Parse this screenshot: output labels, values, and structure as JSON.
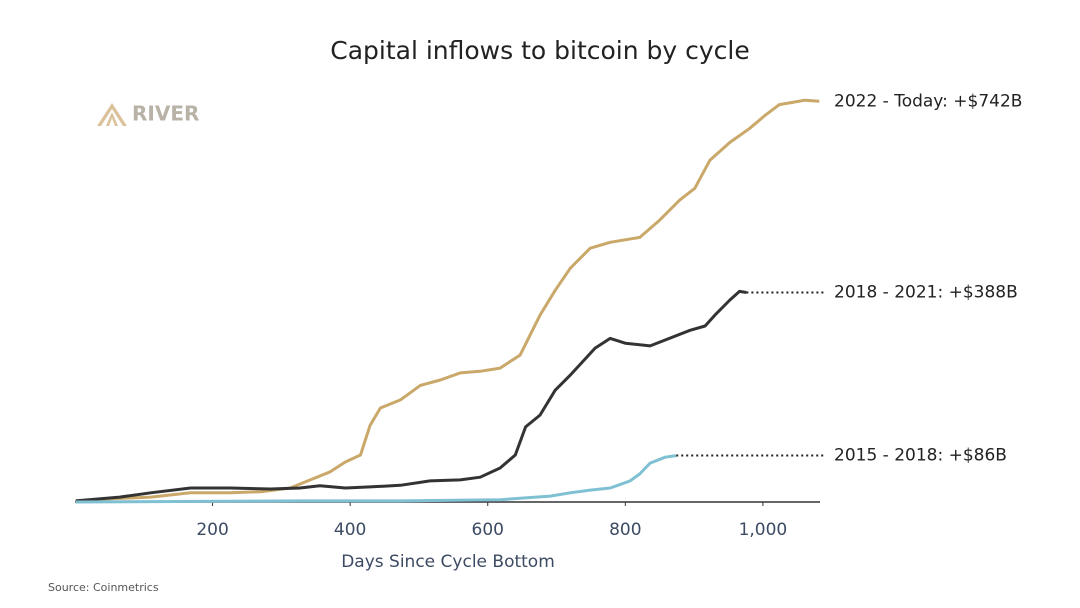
{
  "chart_data": {
    "type": "line",
    "title": "Capital inflows to bitcoin by cycle",
    "logo": "RIVER",
    "x_label": "Days Since Cycle Bottom",
    "source": "Source: Coinmetrics",
    "xlim": [
      0,
      1083
    ],
    "xticks": [
      200,
      400,
      600,
      800,
      {
        "value": 1000,
        "label": "1,000"
      }
    ],
    "ylim": [
      0,
      800
    ],
    "series": [
      {
        "name": "2022 - Today: +$742B",
        "color": "#c9a86a",
        "x": [
          1,
          52,
          110,
          168,
          226,
          270,
          313,
          342,
          371,
          393,
          415,
          429,
          444,
          473,
          502,
          531,
          560,
          589,
          618,
          647,
          676,
          698,
          720,
          749,
          778,
          821,
          850,
          879,
          901,
          923,
          952,
          981,
          1003,
          1024,
          1043,
          1061,
          1082
        ],
        "values": [
          2,
          6,
          9,
          17,
          17,
          19,
          26,
          41,
          56,
          74,
          87,
          142,
          174,
          189,
          216,
          226,
          239,
          242,
          248,
          272,
          346,
          392,
          433,
          470,
          481,
          490,
          522,
          559,
          581,
          633,
          666,
          692,
          716,
          736,
          740,
          744,
          742
        ]
      },
      {
        "name": "2018 - 2021: +$388B",
        "color": "#333333",
        "x": [
          1,
          65,
          110,
          168,
          226,
          284,
          327,
          356,
          393,
          429,
          473,
          516,
          560,
          589,
          618,
          640,
          655,
          676,
          698,
          720,
          756,
          778,
          800,
          836,
          858,
          894,
          916,
          930,
          952,
          966,
          976
        ],
        "values": [
          2,
          9,
          17,
          26,
          26,
          24,
          26,
          30,
          26,
          28,
          31,
          39,
          41,
          46,
          63,
          87,
          139,
          161,
          207,
          235,
          285,
          303,
          294,
          289,
          300,
          318,
          326,
          346,
          374,
          390,
          388
        ]
      },
      {
        "name": "2015 - 2018: +$86B",
        "color": "#7fc1d3",
        "x": [
          1,
          327,
          473,
          618,
          647,
          691,
          720,
          749,
          778,
          807,
          821,
          836,
          858,
          874
        ],
        "values": [
          0,
          2,
          2,
          4,
          7,
          11,
          17,
          22,
          26,
          39,
          52,
          72,
          83,
          86
        ]
      }
    ]
  }
}
